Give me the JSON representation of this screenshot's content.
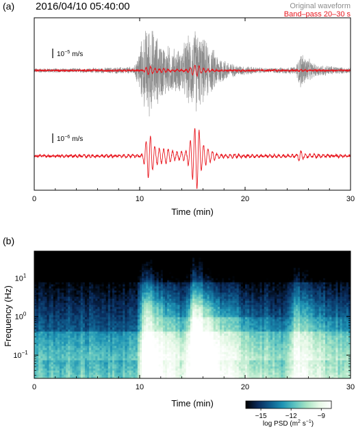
{
  "panel_a": {
    "label": "(a)",
    "title": "2016/04/10 05:40:00",
    "legend": [
      {
        "name": "Original waveform",
        "color": "#8c8c8c"
      },
      {
        "name": "Band–pass 20–30 s",
        "color": "#e8141c"
      }
    ],
    "scale_bar_original": {
      "mantissa": "10",
      "exponent": "−5",
      "unit": "m/s"
    },
    "scale_bar_bandpass": {
      "mantissa": "10",
      "exponent": "−6",
      "unit": "m/s"
    }
  },
  "panel_b": {
    "label": "(b)",
    "colorbar": {
      "ticks": [
        "−15",
        "−12",
        "−9"
      ],
      "label_prefix": "log PSD (m",
      "label_sup1": "2",
      "label_mid": " s",
      "label_sup2": "−1",
      "label_suffix": ")",
      "range": [
        -16.5,
        -8
      ],
      "tick_values": [
        -15,
        -12,
        -9
      ],
      "colors": [
        "#000000",
        "#0a2a5a",
        "#0f5c8c",
        "#1e93b4",
        "#5cc3c0",
        "#a8e4c4",
        "#e6f8e6",
        "#ffffff"
      ]
    }
  },
  "colors": {
    "waveform": "#8c8c8c",
    "bandpass": "#e8141c"
  },
  "chart_data": [
    {
      "type": "line",
      "xlabel": "Time (min)",
      "xlim": [
        0,
        30
      ],
      "xticks": [
        0,
        10,
        20,
        30
      ],
      "xtick_labels": [
        "0",
        "10",
        "20",
        "30"
      ],
      "series": [
        {
          "name": "Original waveform",
          "x": [
            0,
            5,
            9.5,
            10.2,
            10.8,
            11.2,
            12,
            13,
            13.8,
            14.5,
            15.3,
            16,
            17,
            18,
            19,
            22,
            24.8,
            25.3,
            26.5,
            30
          ],
          "amplitude_envelope": [
            0.06,
            0.06,
            0.1,
            0.8,
            1.25,
            1.1,
            0.75,
            0.6,
            0.55,
            0.85,
            1.1,
            0.85,
            0.55,
            0.3,
            0.15,
            0.06,
            0.1,
            0.5,
            0.18,
            0.06
          ]
        },
        {
          "name": "Band–pass 20–30 s",
          "x": [
            0,
            10.2,
            10.9,
            11.4,
            12,
            13,
            14.5,
            15.2,
            15.5,
            15.9,
            16.5,
            17.5,
            22,
            24.9,
            25.2,
            25.6,
            26.5,
            30
          ],
          "amplitude_envelope": [
            0.02,
            0.05,
            0.9,
            0.5,
            0.35,
            0.2,
            0.2,
            1.1,
            1.6,
            0.6,
            0.25,
            0.08,
            0.04,
            0.05,
            0.25,
            0.1,
            0.06,
            0.02
          ]
        }
      ]
    },
    {
      "type": "heatmap",
      "xlabel": "Time (min)",
      "ylabel": "Frequency (Hz)",
      "xlim": [
        0,
        30
      ],
      "ylim": [
        0.025,
        50
      ],
      "yscale": "log",
      "xticks": [
        0,
        10,
        20,
        30
      ],
      "xtick_labels": [
        "0",
        "10",
        "20",
        "30"
      ],
      "yticks": [
        0.1,
        1,
        10
      ],
      "ytick_mantissa": [
        "10",
        "10",
        "10"
      ],
      "ytick_exponent": [
        "−1",
        "0",
        "1"
      ],
      "value": "log PSD",
      "events_min": [
        10.7,
        15.3,
        25
      ],
      "event_strength": [
        1,
        0.95,
        0.55
      ]
    }
  ]
}
